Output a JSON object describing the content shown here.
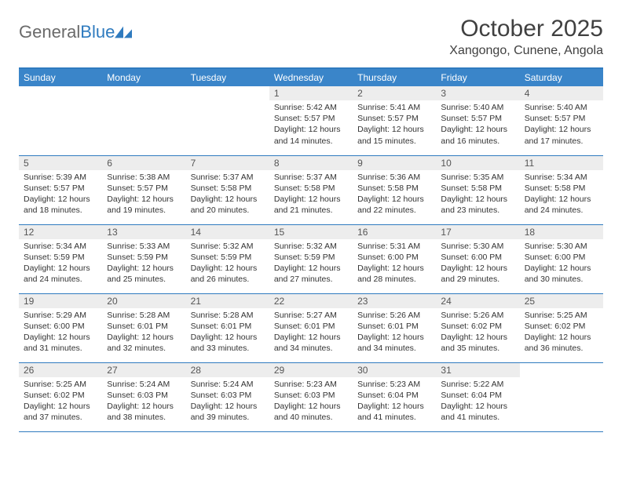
{
  "logo": {
    "word1": "General",
    "word2": "Blue"
  },
  "title": "October 2025",
  "location": "Xangongo, Cunene, Angola",
  "colors": {
    "header_bg": "#3a85c9",
    "header_text": "#ffffff",
    "rule": "#2f7bbf",
    "daynum_bg": "#ededed",
    "body_text": "#333333",
    "logo_gray": "#6a6a6a",
    "logo_blue": "#2f7bbf"
  },
  "day_headers": [
    "Sunday",
    "Monday",
    "Tuesday",
    "Wednesday",
    "Thursday",
    "Friday",
    "Saturday"
  ],
  "labels": {
    "sunrise": "Sunrise:",
    "sunset": "Sunset:",
    "daylight": "Daylight:"
  },
  "weeks": [
    [
      null,
      null,
      null,
      {
        "n": "1",
        "sunrise": "5:42 AM",
        "sunset": "5:57 PM",
        "daylight": "12 hours and 14 minutes."
      },
      {
        "n": "2",
        "sunrise": "5:41 AM",
        "sunset": "5:57 PM",
        "daylight": "12 hours and 15 minutes."
      },
      {
        "n": "3",
        "sunrise": "5:40 AM",
        "sunset": "5:57 PM",
        "daylight": "12 hours and 16 minutes."
      },
      {
        "n": "4",
        "sunrise": "5:40 AM",
        "sunset": "5:57 PM",
        "daylight": "12 hours and 17 minutes."
      }
    ],
    [
      {
        "n": "5",
        "sunrise": "5:39 AM",
        "sunset": "5:57 PM",
        "daylight": "12 hours and 18 minutes."
      },
      {
        "n": "6",
        "sunrise": "5:38 AM",
        "sunset": "5:57 PM",
        "daylight": "12 hours and 19 minutes."
      },
      {
        "n": "7",
        "sunrise": "5:37 AM",
        "sunset": "5:58 PM",
        "daylight": "12 hours and 20 minutes."
      },
      {
        "n": "8",
        "sunrise": "5:37 AM",
        "sunset": "5:58 PM",
        "daylight": "12 hours and 21 minutes."
      },
      {
        "n": "9",
        "sunrise": "5:36 AM",
        "sunset": "5:58 PM",
        "daylight": "12 hours and 22 minutes."
      },
      {
        "n": "10",
        "sunrise": "5:35 AM",
        "sunset": "5:58 PM",
        "daylight": "12 hours and 23 minutes."
      },
      {
        "n": "11",
        "sunrise": "5:34 AM",
        "sunset": "5:58 PM",
        "daylight": "12 hours and 24 minutes."
      }
    ],
    [
      {
        "n": "12",
        "sunrise": "5:34 AM",
        "sunset": "5:59 PM",
        "daylight": "12 hours and 24 minutes."
      },
      {
        "n": "13",
        "sunrise": "5:33 AM",
        "sunset": "5:59 PM",
        "daylight": "12 hours and 25 minutes."
      },
      {
        "n": "14",
        "sunrise": "5:32 AM",
        "sunset": "5:59 PM",
        "daylight": "12 hours and 26 minutes."
      },
      {
        "n": "15",
        "sunrise": "5:32 AM",
        "sunset": "5:59 PM",
        "daylight": "12 hours and 27 minutes."
      },
      {
        "n": "16",
        "sunrise": "5:31 AM",
        "sunset": "6:00 PM",
        "daylight": "12 hours and 28 minutes."
      },
      {
        "n": "17",
        "sunrise": "5:30 AM",
        "sunset": "6:00 PM",
        "daylight": "12 hours and 29 minutes."
      },
      {
        "n": "18",
        "sunrise": "5:30 AM",
        "sunset": "6:00 PM",
        "daylight": "12 hours and 30 minutes."
      }
    ],
    [
      {
        "n": "19",
        "sunrise": "5:29 AM",
        "sunset": "6:00 PM",
        "daylight": "12 hours and 31 minutes."
      },
      {
        "n": "20",
        "sunrise": "5:28 AM",
        "sunset": "6:01 PM",
        "daylight": "12 hours and 32 minutes."
      },
      {
        "n": "21",
        "sunrise": "5:28 AM",
        "sunset": "6:01 PM",
        "daylight": "12 hours and 33 minutes."
      },
      {
        "n": "22",
        "sunrise": "5:27 AM",
        "sunset": "6:01 PM",
        "daylight": "12 hours and 34 minutes."
      },
      {
        "n": "23",
        "sunrise": "5:26 AM",
        "sunset": "6:01 PM",
        "daylight": "12 hours and 34 minutes."
      },
      {
        "n": "24",
        "sunrise": "5:26 AM",
        "sunset": "6:02 PM",
        "daylight": "12 hours and 35 minutes."
      },
      {
        "n": "25",
        "sunrise": "5:25 AM",
        "sunset": "6:02 PM",
        "daylight": "12 hours and 36 minutes."
      }
    ],
    [
      {
        "n": "26",
        "sunrise": "5:25 AM",
        "sunset": "6:02 PM",
        "daylight": "12 hours and 37 minutes."
      },
      {
        "n": "27",
        "sunrise": "5:24 AM",
        "sunset": "6:03 PM",
        "daylight": "12 hours and 38 minutes."
      },
      {
        "n": "28",
        "sunrise": "5:24 AM",
        "sunset": "6:03 PM",
        "daylight": "12 hours and 39 minutes."
      },
      {
        "n": "29",
        "sunrise": "5:23 AM",
        "sunset": "6:03 PM",
        "daylight": "12 hours and 40 minutes."
      },
      {
        "n": "30",
        "sunrise": "5:23 AM",
        "sunset": "6:04 PM",
        "daylight": "12 hours and 41 minutes."
      },
      {
        "n": "31",
        "sunrise": "5:22 AM",
        "sunset": "6:04 PM",
        "daylight": "12 hours and 41 minutes."
      },
      null
    ]
  ]
}
